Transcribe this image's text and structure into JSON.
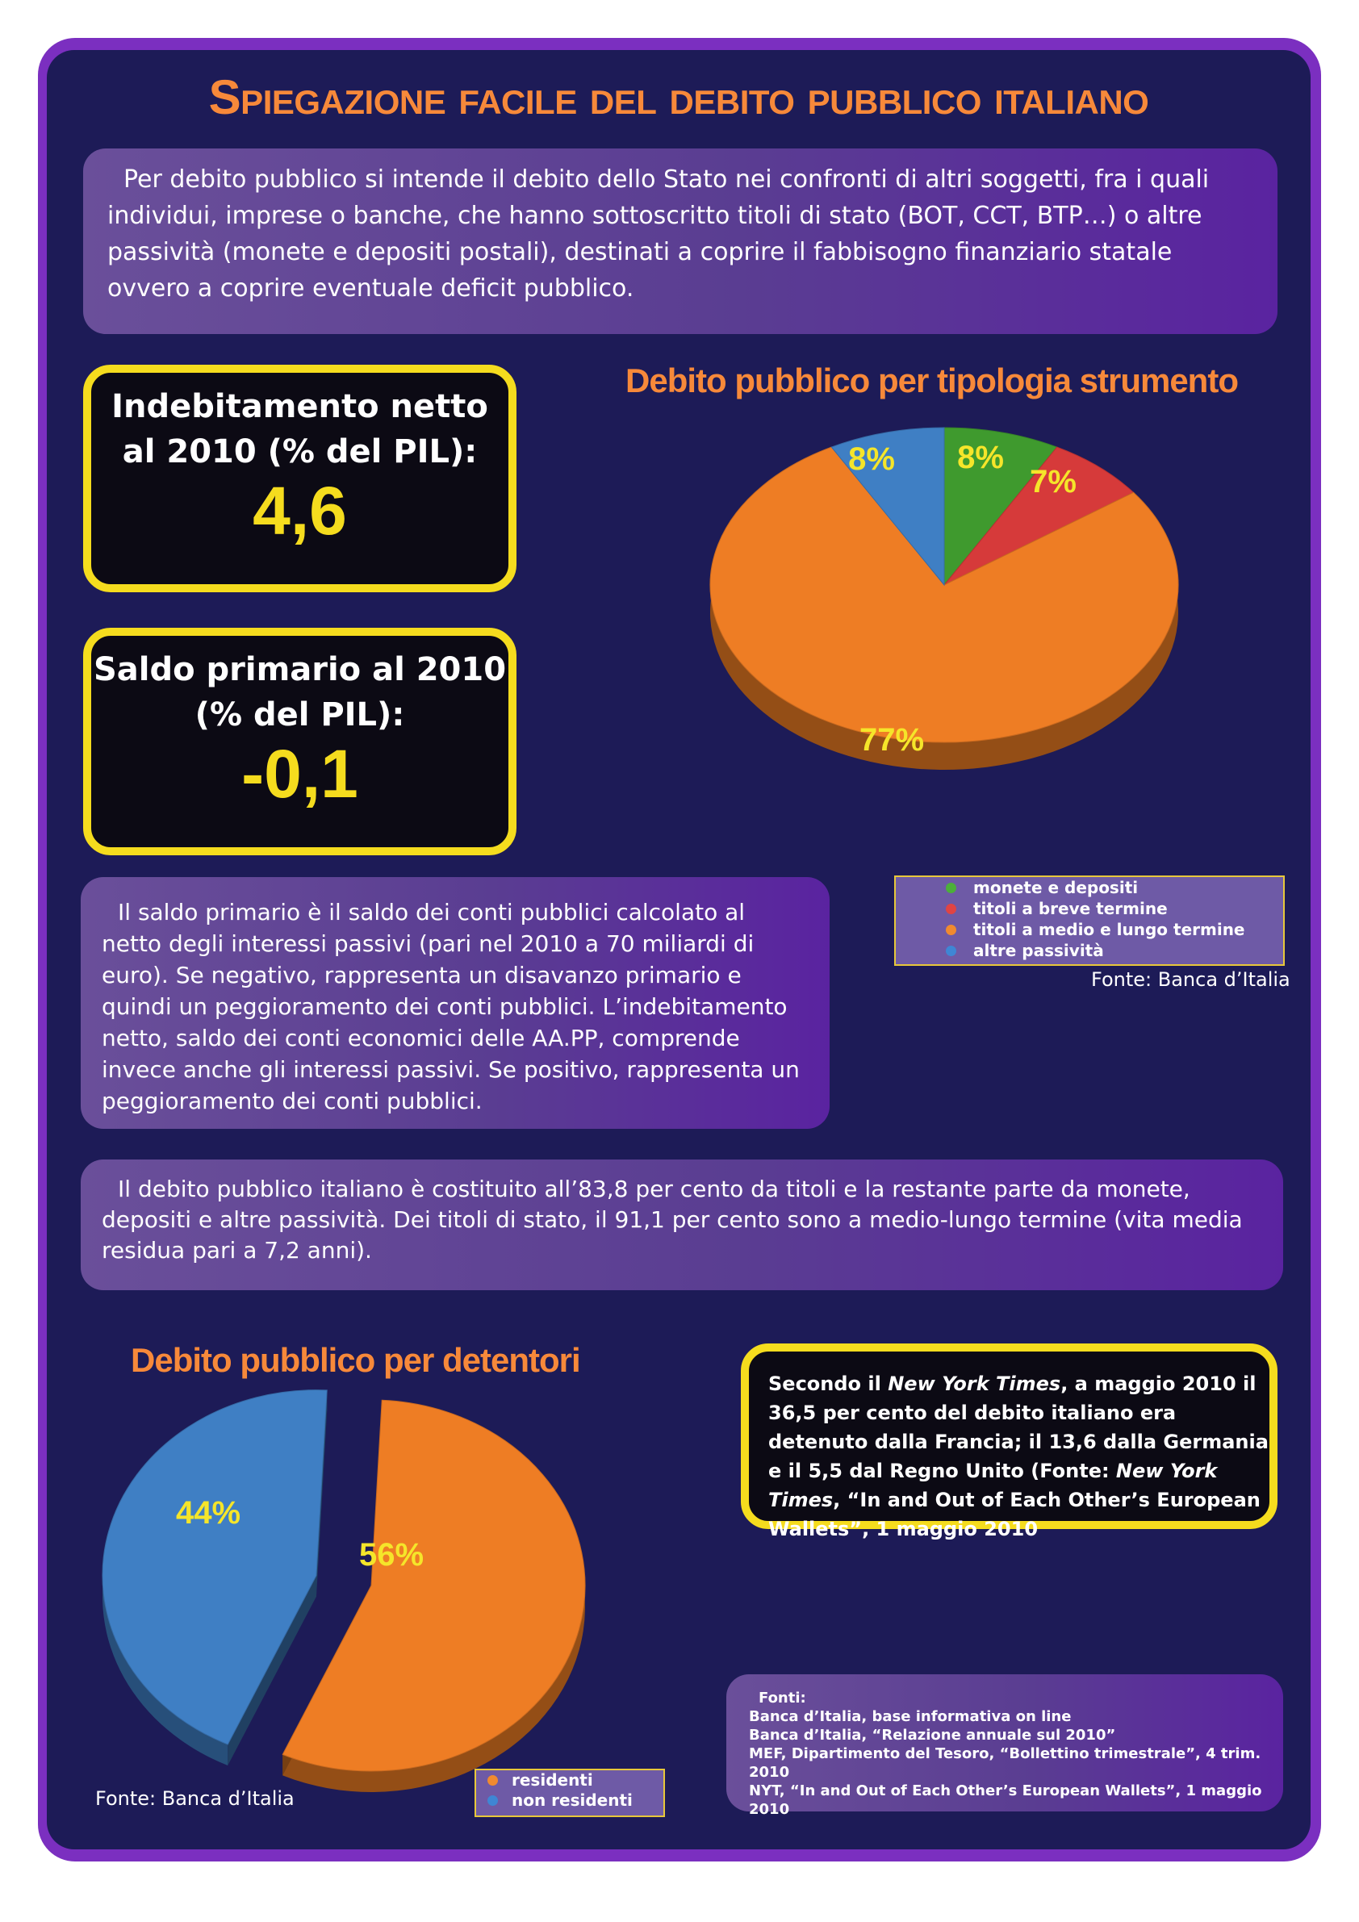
{
  "title": "Spiegazione facile del debito pubblico italiano",
  "intro": "Per debito pubblico si intende il debito dello Stato nei confronti di altri soggetti, fra i quali individui, imprese o banche, che hanno sottoscritto titoli di stato (BOT, CCT, BTP…) o altre passività (monete e depositi postali), destinati a coprire il fabbisogno finanziario statale ovvero a coprire eventuale deficit pubblico.",
  "indebitamento": {
    "label": "Indebitamento netto al 2010 (% del PIL):",
    "value": "4,6"
  },
  "saldo": {
    "label": "Saldo primario al 2010 (% del PIL):",
    "value": "-0,1"
  },
  "saldo_text": "Il saldo primario è il saldo dei conti pubblici calcolato al netto degli interessi passivi (pari nel 2010 a 70 miliardi di euro). Se negativo, rappresenta un disavanzo primario e quindi un peggioramento dei conti pubblici. L’indebitamento netto, saldo dei conti economici delle AA.PP, comprende invece anche gli interessi passivi. Se positivo, rappresenta un peggioramento dei conti pubblici.",
  "composition_text": "Il debito pubblico italiano è costituito all’83,8 per cento da titoli e la restante parte da monete, depositi e altre passività. Dei titoli di stato, il 91,1 per cento sono a medio-lungo termine (vita media residua pari a 7,2 anni).",
  "nyt": {
    "p1": "Secondo il ",
    "italic1": "New York Times",
    "p2": ", a maggio 2010 il 36,5 per cento del debito italiano era detenuto dalla Francia; il 13,6 dalla Germania e il 5,5 dal Regno Unito (Fonte: ",
    "italic2": "New York Times",
    "p3": ", “In and Out of Each Other’s European Wallets”, 1 maggio 2010"
  },
  "fonti": {
    "label": "Fonti:",
    "lines": [
      "Banca d’Italia, base informativa on line",
      "Banca d’Italia, “Relazione annuale sul 2010”",
      "MEF, Dipartimento del Tesoro, “Bollettino trimestrale”, 4 trim. 2010",
      "NYT, “In and Out of Each Other’s European Wallets”, 1 maggio 2010"
    ]
  },
  "colors": {
    "accent": "#f7893a",
    "highlight": "#f5dc1e",
    "background": "#1d1b57",
    "frame": "#7b2fc0"
  },
  "chart_data": [
    {
      "type": "pie",
      "title": "Debito pubblico per tipologia strumento",
      "source": "Fonte: Banca d’Italia",
      "legend_placement": "bottom-right",
      "slices": [
        {
          "label": "monete e depositi",
          "value": 8,
          "display": "8%",
          "color": "#3f9a2e",
          "dot": "#4caf3a"
        },
        {
          "label": "titoli a breve termine",
          "value": 7,
          "display": "7%",
          "color": "#d63a3a",
          "dot": "#e04444"
        },
        {
          "label": "titoli a medio e lungo termine",
          "value": 77,
          "display": "77%",
          "color": "#ee7d24",
          "dot": "#f08a30"
        },
        {
          "label": "altre passività",
          "value": 8,
          "display": "8%",
          "color": "#3f7fc4",
          "dot": "#3f86d4"
        }
      ]
    },
    {
      "type": "pie",
      "title": "Debito pubblico per detentori",
      "source": "Fonte: Banca d’Italia",
      "legend_placement": "bottom",
      "slices": [
        {
          "label": "residenti",
          "value": 56,
          "display": "56%",
          "color": "#ee7d24",
          "dot": "#f08a30"
        },
        {
          "label": "non residenti",
          "value": 44,
          "display": "44%",
          "color": "#3f7fc4",
          "dot": "#3f86d4"
        }
      ]
    }
  ]
}
